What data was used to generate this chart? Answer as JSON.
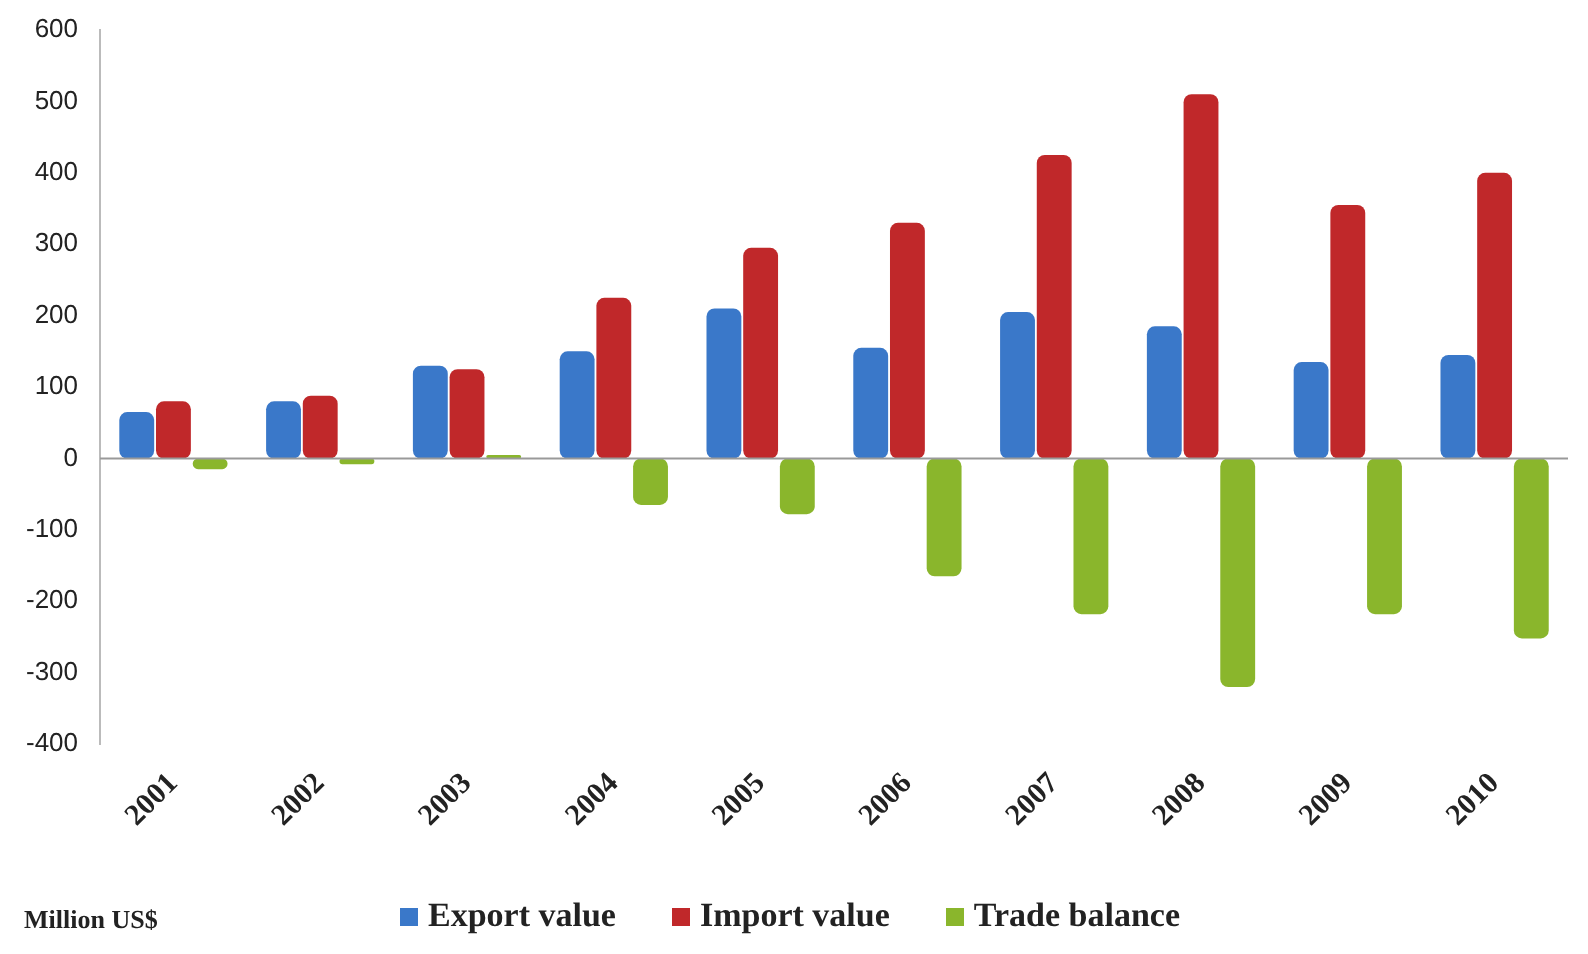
{
  "chart_data": {
    "type": "bar",
    "ylabel": "Million US$",
    "categories": [
      "2001",
      "2002",
      "2003",
      "2004",
      "2005",
      "2006",
      "2007",
      "2008",
      "2009",
      "2010"
    ],
    "series": [
      {
        "name": "Export value",
        "color": "#3a78c9",
        "values": [
          65,
          80,
          130,
          150,
          210,
          155,
          205,
          185,
          135,
          145
        ]
      },
      {
        "name": "Import value",
        "color": "#c0282a",
        "values": [
          80,
          88,
          125,
          225,
          295,
          330,
          425,
          510,
          355,
          400
        ]
      },
      {
        "name": "Trade balance",
        "color": "#8ab62c",
        "values": [
          -15,
          -8,
          5,
          -65,
          -78,
          -165,
          -218,
          -320,
          -218,
          -252
        ]
      }
    ],
    "ylim": [
      -400,
      600
    ],
    "yticks": [
      -400,
      -300,
      -200,
      -100,
      0,
      100,
      200,
      300,
      400,
      500,
      600
    ],
    "grid": false,
    "ref_lines": [
      {
        "axis": "y",
        "value": 0,
        "color": "#999999"
      }
    ],
    "legend": "bottom"
  }
}
